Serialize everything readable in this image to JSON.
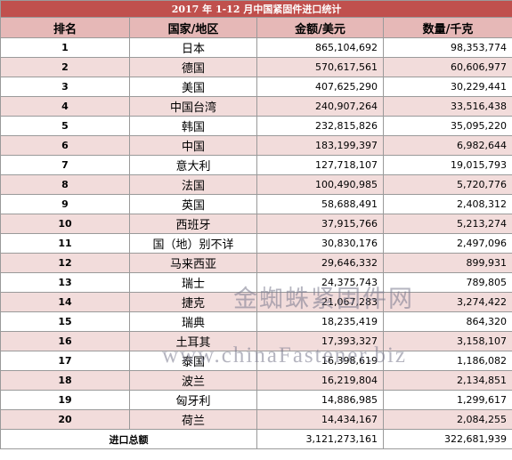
{
  "table": {
    "title": "2017 年 1-12 月中国紧固件进口统计",
    "headers": [
      "排名",
      "国家/地区",
      "金额/美元",
      "数量/千克"
    ],
    "rows": [
      [
        "1",
        "日本",
        "865,104,692",
        "98,353,774"
      ],
      [
        "2",
        "德国",
        "570,617,561",
        "60,606,977"
      ],
      [
        "3",
        "美国",
        "407,625,290",
        "30,229,441"
      ],
      [
        "4",
        "中国台湾",
        "240,907,264",
        "33,516,438"
      ],
      [
        "5",
        "韩国",
        "232,815,826",
        "35,095,220"
      ],
      [
        "6",
        "中国",
        "183,199,397",
        "6,982,644"
      ],
      [
        "7",
        "意大利",
        "127,718,107",
        "19,015,793"
      ],
      [
        "8",
        "法国",
        "100,490,985",
        "5,720,776"
      ],
      [
        "9",
        "英国",
        "58,688,491",
        "2,408,312"
      ],
      [
        "10",
        "西班牙",
        "37,915,766",
        "5,213,274"
      ],
      [
        "11",
        "国（地）别不详",
        "30,830,176",
        "2,497,096"
      ],
      [
        "12",
        "马来西亚",
        "29,646,332",
        "899,931"
      ],
      [
        "13",
        "瑞士",
        "24,375,743",
        "789,805"
      ],
      [
        "14",
        "捷克",
        "21,067,283",
        "3,274,422"
      ],
      [
        "15",
        "瑞典",
        "18,235,419",
        "864,320"
      ],
      [
        "16",
        "土耳其",
        "17,393,327",
        "3,158,107"
      ],
      [
        "17",
        "泰国",
        "16,398,619",
        "1,186,082"
      ],
      [
        "18",
        "波兰",
        "16,219,804",
        "2,134,851"
      ],
      [
        "19",
        "匈牙利",
        "14,886,985",
        "1,299,617"
      ],
      [
        "20",
        "荷兰",
        "14,434,167",
        "2,084,255"
      ]
    ],
    "total": [
      "进口总额",
      "3,121,273,161",
      "322,681,939"
    ]
  },
  "watermark": [
    "金蜘蛛紧固件网",
    "www.chinaFastener.biz"
  ]
}
